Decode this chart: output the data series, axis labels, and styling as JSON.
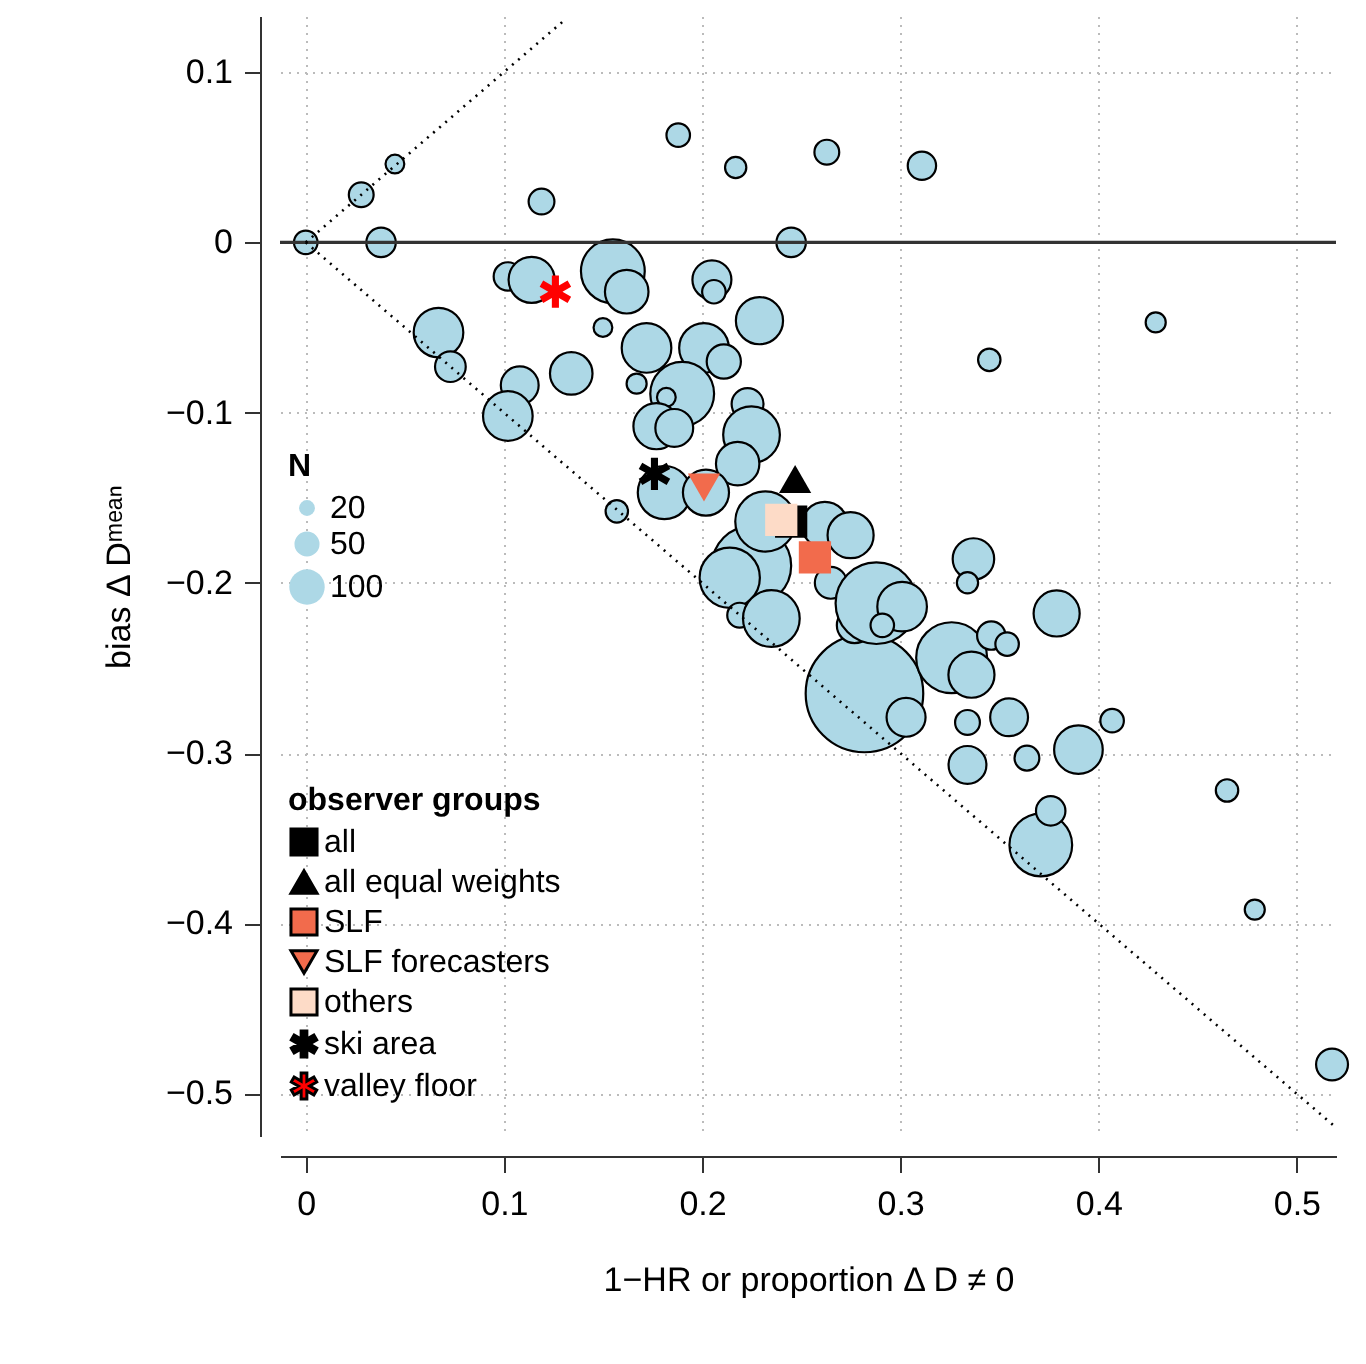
{
  "chart_data": {
    "type": "bubble",
    "xlabel": "1−HR or proportion  Δ D ≠ 0",
    "ylabel": "bias  Δ Dᵐᵉᵃⁿ",
    "legend_title": "observer groups",
    "legend": "bottom left",
    "grid": true,
    "xlim": [
      -0.013,
      0.52
    ],
    "ylim": [
      -0.525,
      0.133
    ],
    "xticks": [
      0,
      0.1,
      0.2,
      0.3,
      0.4,
      0.5
    ],
    "yticks": [
      -0.5,
      -0.4,
      -0.3,
      -0.2,
      -0.1,
      0,
      0.1
    ],
    "size_legend": [
      20,
      50,
      100
    ],
    "annotations": [
      "N"
    ],
    "ref_lines": [
      {
        "axis": "y",
        "value": 0,
        "color": "#333333"
      }
    ],
    "series": [
      {
        "color": "#add8e6",
        "x": [
          0.282,
          0,
          0.028,
          0.045,
          0.038,
          0.119,
          0.188,
          0.217,
          0.263,
          0.311,
          0.245,
          0.429,
          0.345,
          0.102,
          0.114,
          0.155,
          0.162,
          0.15,
          0.205,
          0.206,
          0.229,
          0.067,
          0.073,
          0.134,
          0.172,
          0.201,
          0.211,
          0.19,
          0.167,
          0.182,
          0.223,
          0.108,
          0.102,
          0.177,
          0.186,
          0.225,
          0.218,
          0.181,
          0.202,
          0.157,
          0.225,
          0.232,
          0.262,
          0.275,
          0.214,
          0.219,
          0.235,
          0.265,
          0.277,
          0.288,
          0.337,
          0.334,
          0.379,
          0.301,
          0.291,
          0.326,
          0.336,
          0.346,
          0.354,
          0.303,
          0.334,
          0.355,
          0.407,
          0.39,
          0.334,
          0.364,
          0.465,
          0.371,
          0.376,
          0.479,
          0.518
        ],
        "values": [
          -0.265,
          0,
          0.028,
          0.046,
          0,
          0.024,
          0.063,
          0.044,
          0.053,
          0.045,
          0,
          -0.047,
          -0.069,
          -0.02,
          -0.022,
          -0.017,
          -0.029,
          -0.05,
          -0.022,
          -0.029,
          -0.046,
          -0.053,
          -0.073,
          -0.077,
          -0.062,
          -0.062,
          -0.07,
          -0.089,
          -0.083,
          -0.091,
          -0.095,
          -0.084,
          -0.102,
          -0.108,
          -0.109,
          -0.113,
          -0.13,
          -0.147,
          -0.147,
          -0.158,
          -0.19,
          -0.164,
          -0.166,
          -0.172,
          -0.197,
          -0.219,
          -0.221,
          -0.2,
          -0.225,
          -0.212,
          -0.186,
          -0.2,
          -0.218,
          -0.214,
          -0.225,
          -0.244,
          -0.254,
          -0.231,
          -0.236,
          -0.279,
          -0.282,
          -0.279,
          -0.281,
          -0.298,
          -0.307,
          -0.303,
          -0.322,
          -0.354,
          -0.334,
          -0.392,
          -0.483
        ],
        "sizes": [
          1100,
          44,
          49,
          28,
          69,
          53,
          44,
          36,
          49,
          64,
          69,
          32,
          40,
          64,
          169,
          324,
          151,
          28,
          121,
          44,
          177,
          196,
          75,
          144,
          196,
          196,
          93,
          324,
          32,
          28,
          81,
          114,
          196,
          169,
          114,
          256,
          150,
          225,
          169,
          40,
          500,
          289,
          169,
          169,
          289,
          49,
          256,
          81,
          100,
          529,
          137,
          36,
          169,
          196,
          44,
          400,
          169,
          64,
          44,
          121,
          49,
          114,
          44,
          188,
          114,
          49,
          40,
          313,
          69,
          32,
          81
        ]
      },
      {
        "type": "line",
        "color": "#000000",
        "line_style": "dotted",
        "x": [
          0,
          0.13
        ],
        "values": [
          0,
          0.13
        ]
      },
      {
        "type": "line",
        "color": "#000000",
        "line_style": "dotted",
        "x": [
          0,
          0.52
        ],
        "values": [
          0,
          -0.52
        ]
      },
      {
        "type": "scatter",
        "name": "all",
        "color": "#000000",
        "marker": "square",
        "x": [
          0.245
        ],
        "values": [
          -0.164
        ]
      },
      {
        "type": "scatter",
        "name": "all equal weights",
        "color": "#000000",
        "marker": "triangle",
        "x": [
          0.247
        ],
        "values": [
          -0.139
        ]
      },
      {
        "type": "scatter",
        "name": "SLF",
        "color": "#f26b4c",
        "marker": "square",
        "x": [
          0.257
        ],
        "values": [
          -0.185
        ]
      },
      {
        "type": "scatter",
        "name": "SLF forecasters",
        "color": "#f26b4c",
        "marker": "triangle-down",
        "x": [
          0.201
        ],
        "values": [
          -0.144
        ]
      },
      {
        "type": "scatter",
        "name": "others",
        "color": "#fddbc7",
        "marker": "square",
        "x": [
          0.24
        ],
        "values": [
          -0.163
        ]
      },
      {
        "type": "scatter",
        "name": "ski area",
        "color": "#000000",
        "marker": "star",
        "x": [
          0.176
        ],
        "values": [
          -0.136
        ]
      },
      {
        "type": "scatter",
        "name": "valley floor",
        "color": "#ff0000",
        "marker": "star",
        "x": [
          0.126
        ],
        "values": [
          -0.029
        ]
      }
    ]
  }
}
